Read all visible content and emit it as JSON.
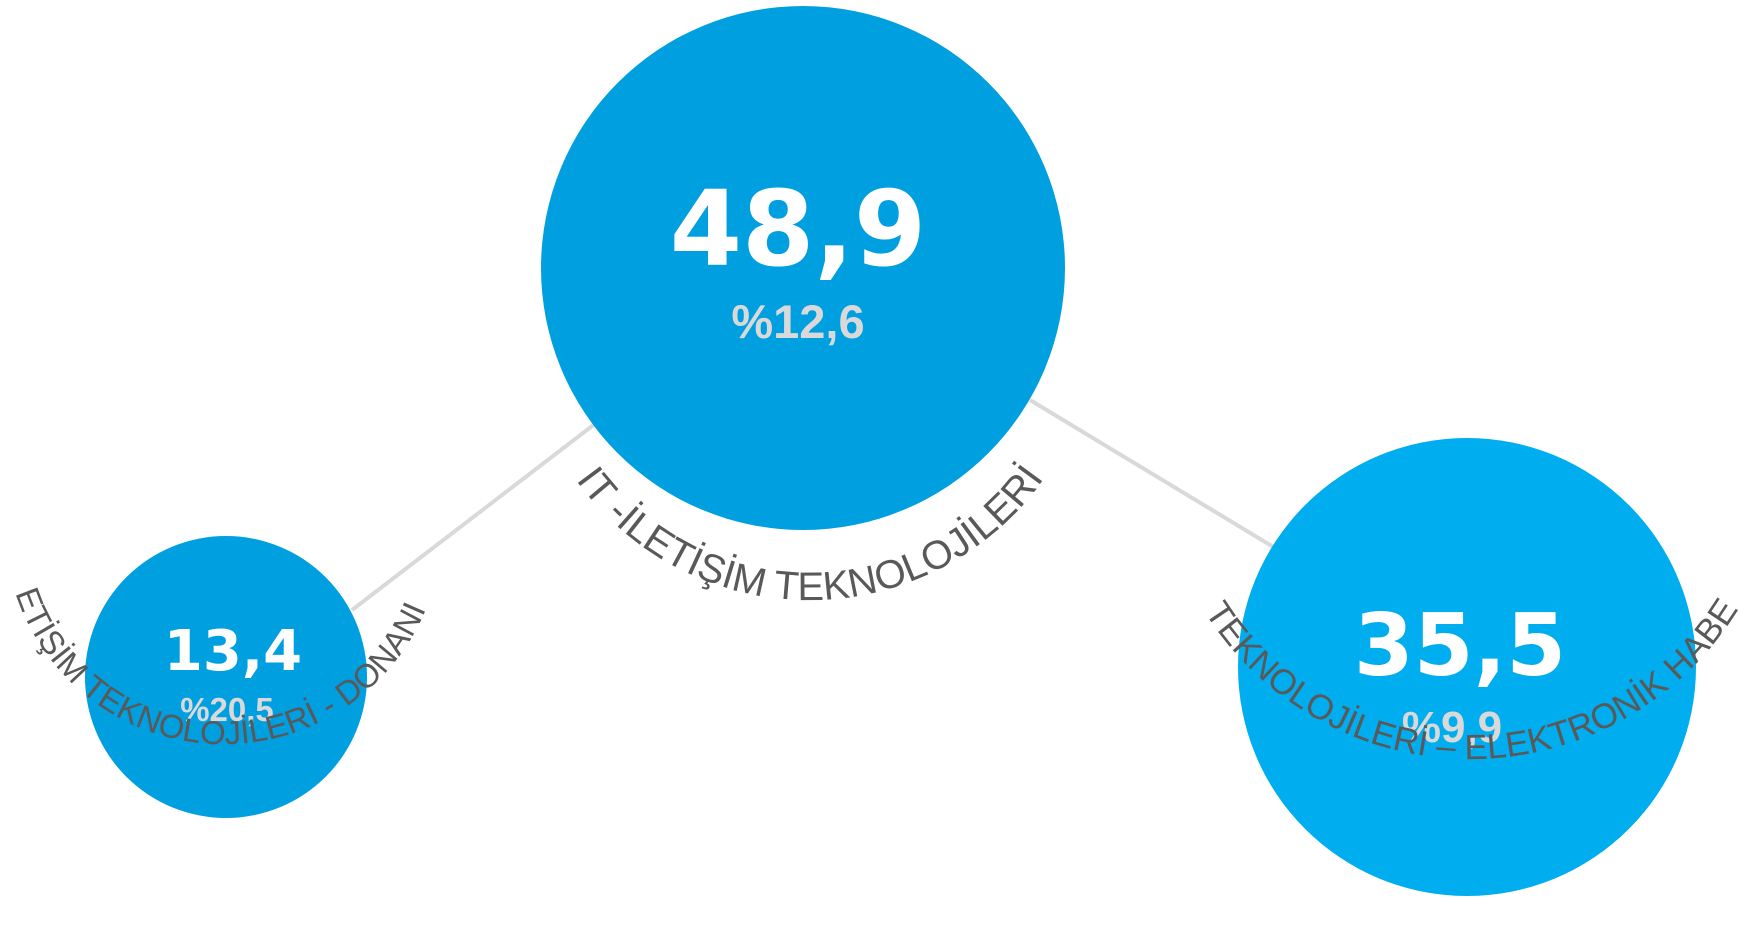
{
  "colors": {
    "node_primary": "#009fe0",
    "node_secondary": "#00aeef",
    "connector": "#d9d9d9",
    "value_text": "#ffffff",
    "percent_text": "#d9d9d9",
    "label_text": "#595959"
  },
  "nodes": {
    "main": {
      "value": "48,9",
      "percent": "%12,6",
      "label": "IT -İLETİŞİM TEKNOLOJİLERİ"
    },
    "left": {
      "value": "13,4",
      "percent": "%20,5",
      "label": "İLETİŞİM TEKNOLOJİLERİ - DONANIM"
    },
    "right": {
      "value": "35,5",
      "percent": "%9,9",
      "label": "İLETİŞİM TEKNOLOJİLERİ – ELEKTRONİK HABERLEŞME"
    }
  }
}
